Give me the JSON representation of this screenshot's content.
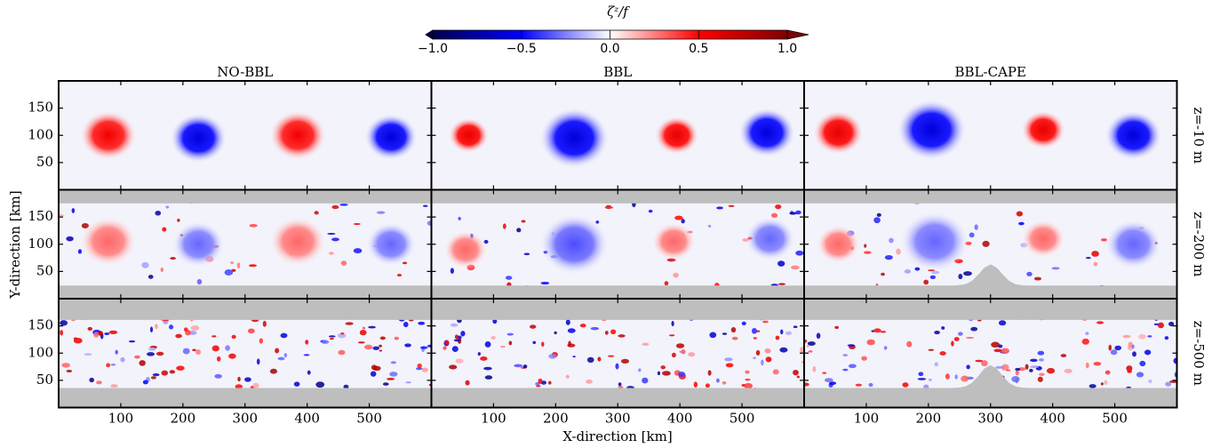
{
  "chart_data": {
    "type": "vorticity-panels",
    "colorbar": {
      "label": "ζᶻ/f",
      "lim": [
        -1,
        1
      ],
      "ticks": [
        {
          "value": -1,
          "label": "−1.0"
        },
        {
          "value": -0.5,
          "label": "−0.5"
        },
        {
          "value": 0,
          "label": "0.0"
        },
        {
          "value": 0.5,
          "label": "0.5"
        },
        {
          "value": 1,
          "label": "1.0"
        }
      ]
    },
    "xlabel": "X-direction [km]",
    "ylabel": "Y-direction [km]",
    "xlim": [
      0,
      600
    ],
    "ylim": [
      0,
      200
    ],
    "xticks": [
      100,
      200,
      300,
      400,
      500
    ],
    "yticks": [
      50,
      100,
      150
    ],
    "columns": [
      "NO-BBL",
      "BBL",
      "BBL-CAPE"
    ],
    "rows": [
      {
        "label": "z=-10 m",
        "floor": 0,
        "ceiling": 200,
        "noise": 0,
        "panels": [
          {
            "eddies": [
              {
                "x": 80,
                "y": 100,
                "r": 45,
                "value": 0.55
              },
              {
                "x": 225,
                "y": 95,
                "r": 45,
                "value": -0.6
              },
              {
                "x": 385,
                "y": 100,
                "r": 45,
                "value": 0.55
              },
              {
                "x": 535,
                "y": 97,
                "r": 42,
                "value": -0.6
              }
            ]
          },
          {
            "eddies": [
              {
                "x": 60,
                "y": 100,
                "r": 32,
                "value": 0.6
              },
              {
                "x": 230,
                "y": 95,
                "r": 55,
                "value": -0.6
              },
              {
                "x": 395,
                "y": 100,
                "r": 35,
                "value": 0.6
              },
              {
                "x": 540,
                "y": 105,
                "r": 45,
                "value": -0.6
              }
            ]
          },
          {
            "eddies": [
              {
                "x": 55,
                "y": 105,
                "r": 40,
                "value": 0.6
              },
              {
                "x": 205,
                "y": 110,
                "r": 55,
                "value": -0.6
              },
              {
                "x": 385,
                "y": 110,
                "r": 35,
                "value": 0.6
              },
              {
                "x": 530,
                "y": 100,
                "r": 45,
                "value": -0.6
              }
            ]
          }
        ]
      },
      {
        "label": "z=-200 m",
        "floor": 24,
        "ceiling": 175,
        "noise": 60,
        "panels": [
          {
            "eddies": [
              {
                "x": 80,
                "y": 105,
                "r": 45,
                "value": 0.3
              },
              {
                "x": 225,
                "y": 100,
                "r": 42,
                "value": -0.3
              },
              {
                "x": 385,
                "y": 105,
                "r": 45,
                "value": 0.3
              },
              {
                "x": 535,
                "y": 100,
                "r": 40,
                "value": -0.3
              }
            ]
          },
          {
            "eddies": [
              {
                "x": 55,
                "y": 90,
                "r": 35,
                "value": 0.3
              },
              {
                "x": 230,
                "y": 100,
                "r": 55,
                "value": -0.35
              },
              {
                "x": 390,
                "y": 105,
                "r": 35,
                "value": 0.3
              },
              {
                "x": 545,
                "y": 110,
                "r": 40,
                "value": -0.3
              }
            ]
          },
          {
            "eddies": [
              {
                "x": 55,
                "y": 100,
                "r": 35,
                "value": 0.3
              },
              {
                "x": 210,
                "y": 105,
                "r": 55,
                "value": -0.3
              },
              {
                "x": 385,
                "y": 110,
                "r": 35,
                "value": 0.3
              },
              {
                "x": 530,
                "y": 100,
                "r": 45,
                "value": -0.3
              }
            ],
            "seamount": {
              "x": 300,
              "height": 63,
              "halfwidth": 35
            }
          }
        ]
      },
      {
        "label": "z=-500 m",
        "floor": 36,
        "ceiling": 161,
        "noise": 170,
        "panels": [
          {
            "eddies": []
          },
          {
            "eddies": []
          },
          {
            "eddies": [],
            "seamount": {
              "x": 300,
              "height": 78,
              "halfwidth": 35
            }
          }
        ]
      }
    ]
  }
}
